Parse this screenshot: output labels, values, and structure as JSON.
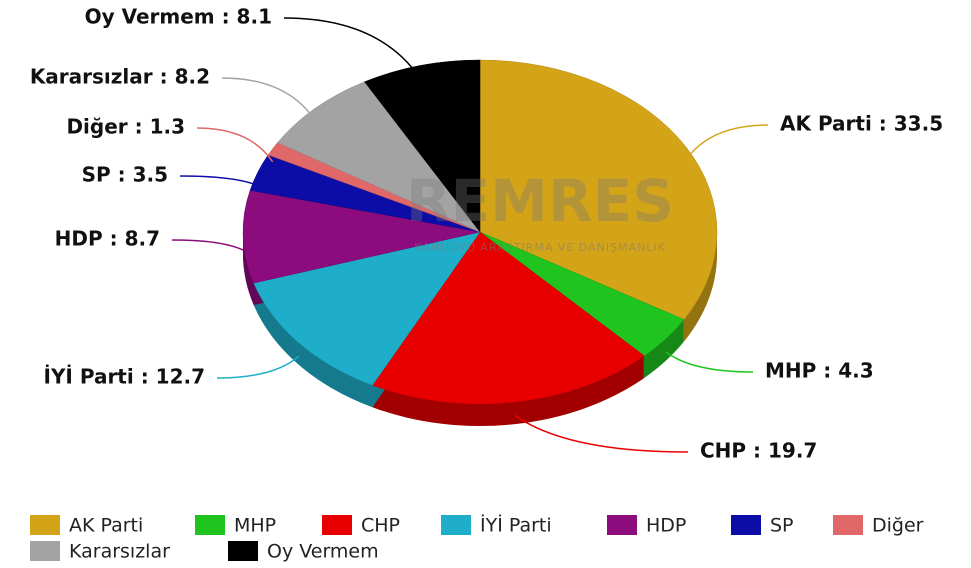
{
  "chart_data": {
    "type": "pie",
    "categories": [
      "AK Parti",
      "MHP",
      "CHP",
      "İYİ Parti",
      "HDP",
      "SP",
      "Diğer",
      "Kararsızlar",
      "Oy Vermem"
    ],
    "values": [
      33.5,
      4.3,
      19.7,
      12.7,
      8.7,
      3.5,
      1.3,
      8.2,
      8.1
    ],
    "value_labels": [
      "AK Parti : 33.5",
      "MHP : 4.3",
      "CHP : 19.7",
      "İYİ Parti : 12.7",
      "HDP : 8.7",
      "SP : 3.5",
      "Diğer : 1.3",
      "Kararsızlar : 8.2",
      "Oy Vermem : 8.1"
    ],
    "colors": [
      "#d4a418",
      "#1fc41f",
      "#e80000",
      "#1eaec9",
      "#8c0c7e",
      "#0c0ca6",
      "#e06868",
      "#a3a3a3",
      "#000000"
    ],
    "watermark": "REMRES",
    "watermark_subtitle": "KAMUOYU ARAŞTIRMA VE DANIŞMANLIK",
    "legend": "bottom"
  }
}
